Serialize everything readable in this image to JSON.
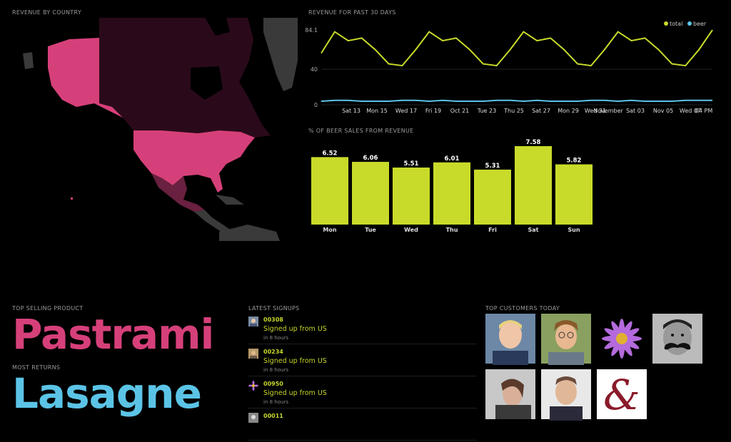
{
  "panels": {
    "revenue_by_country": "REVENUE BY COUNTRY",
    "revenue_30_days": "REVENUE FOR PAST 30 DAYS",
    "beer_sales": "% OF BEER SALES FROM REVENUE",
    "top_selling": "TOP SELLING PRODUCT",
    "most_returns": "MOST RETURNS",
    "latest_signups": "LATEST SIGNUPS",
    "top_customers": "TOP CUSTOMERS TODAY"
  },
  "top_selling_product": "Pastrami",
  "most_returns_product": "Lasagne",
  "colors": {
    "accent_lime": "#c9db2a",
    "accent_pink": "#d6407a",
    "accent_blue": "#5bc4e6",
    "map_dark": "#2a0a1a",
    "map_gray": "#3a3a3a"
  },
  "map": {
    "highlighted_regions": [
      "USA",
      "Alaska"
    ],
    "dim_regions": [
      "Canada",
      "Mexico"
    ],
    "gray_regions": [
      "Greenland",
      "Central America",
      "Caribbean"
    ]
  },
  "chart_data": [
    {
      "type": "line",
      "title": "REVENUE FOR PAST 30 DAYS",
      "legend": [
        "total",
        "beer"
      ],
      "legend_position": "top-right",
      "y_ticks": [
        "0",
        "40",
        "84.1"
      ],
      "ylim": [
        0,
        84.1
      ],
      "x_tick_labels": [
        "Sat 13",
        "Mon 15",
        "Wed 17",
        "Fri 19",
        "Oct 21",
        "Tue 23",
        "Thu 25",
        "Sat 27",
        "Mon 29",
        "Wed 31",
        "November",
        "Sat 03",
        "Nov 05",
        "Wed 07",
        "04 PM"
      ],
      "series": [
        {
          "name": "total",
          "values": [
            58,
            82,
            72,
            75,
            62,
            46,
            44,
            62,
            82,
            72,
            75,
            62,
            46,
            44,
            62,
            82,
            72,
            75,
            62,
            46,
            44,
            62,
            82,
            72,
            75,
            62,
            46,
            44,
            62,
            84
          ]
        },
        {
          "name": "beer",
          "values": [
            4,
            5,
            5,
            4,
            4,
            4,
            5,
            5,
            4,
            5,
            4,
            4,
            4,
            5,
            5,
            4,
            5,
            4,
            4,
            4,
            5,
            5,
            4,
            5,
            4,
            4,
            4,
            5,
            5,
            5
          ]
        }
      ]
    },
    {
      "type": "bar",
      "title": "% OF BEER SALES FROM REVENUE",
      "categories": [
        "Mon",
        "Tue",
        "Wed",
        "Thu",
        "Fri",
        "Sat",
        "Sun"
      ],
      "values": [
        6.52,
        6.06,
        5.51,
        6.01,
        5.31,
        7.58,
        5.82
      ],
      "ylim": [
        0,
        7.58
      ]
    }
  ],
  "signups": [
    {
      "id": "00308",
      "message": "Signed up from US",
      "time": "in 8 hours",
      "avatar": "avatar-face-icon"
    },
    {
      "id": "00234",
      "message": "Signed up from US",
      "time": "in 8 hours",
      "avatar": "avatar-face-icon"
    },
    {
      "id": "00950",
      "message": "Signed up from US",
      "time": "in 8 hours",
      "avatar": "flower-icon"
    },
    {
      "id": "00011",
      "message": "",
      "time": "",
      "avatar": "avatar-face-icon"
    }
  ],
  "customers": [
    {
      "avatar": "customer-avatar-1"
    },
    {
      "avatar": "customer-avatar-2"
    },
    {
      "avatar": "customer-avatar-flower"
    },
    {
      "avatar": "customer-avatar-mustache"
    },
    {
      "avatar": "customer-avatar-5"
    },
    {
      "avatar": "customer-avatar-6"
    },
    {
      "avatar": "customer-avatar-ampersand"
    }
  ]
}
